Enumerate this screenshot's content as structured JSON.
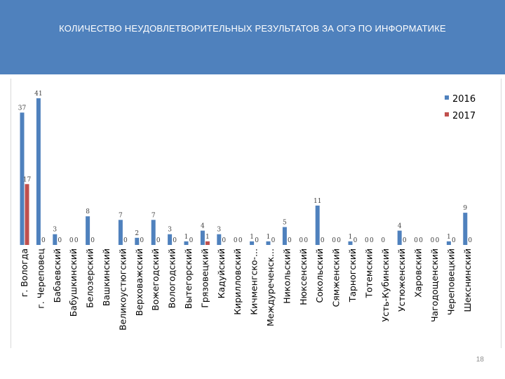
{
  "slide": {
    "title": "КОЛИЧЕСТВО  НЕУДОВЛЕТВОРИТЕЛЬНЫХ РЕЗУЛЬТАТОВ ЗА ОГЭ  ПО ИНФОРМАТИКЕ",
    "page_number": "18"
  },
  "colors": {
    "header": "#4f81bd",
    "series_2016": "#4f81bd",
    "series_2017": "#c0504d"
  },
  "chart_data": {
    "type": "bar",
    "title": "",
    "xlabel": "",
    "ylabel": "",
    "ylim": [
      0,
      41
    ],
    "grid": false,
    "legend_position": "top-right",
    "categories": [
      "г. Вологда",
      "г. Череповец",
      "Бабаевский",
      "Бабушкинский",
      "Белозерский",
      "Вашкинский",
      "Великоустюгский",
      "Верховажский",
      "Вожегодский",
      "Вологодский",
      "Вытегорский",
      "Грязовецкий",
      "Кадуйский",
      "Кирилловский",
      "Кичменгско-...",
      "Междуреченск...",
      "Никольский",
      "Нюксенский",
      "Сокольский",
      "Сямженский",
      "Тарногский",
      "Тотемский",
      "Усть-Кубинский",
      "Устюженский",
      "Харовский",
      "Чагодощенский",
      "Череповецкий",
      "Шекснинский"
    ],
    "series": [
      {
        "name": "2016",
        "values": [
          37,
          41,
          3,
          0,
          8,
          null,
          7,
          2,
          7,
          3,
          1,
          4,
          3,
          0,
          1,
          1,
          5,
          0,
          11,
          0,
          1,
          0,
          0,
          4,
          0,
          0,
          1,
          9
        ],
        "labels": [
          "37",
          "41",
          "3",
          "0",
          "8",
          "",
          "7",
          "2",
          "7",
          "3",
          "1",
          "4",
          "3",
          "0",
          "1",
          "1",
          "5",
          "0",
          "11",
          "0",
          "1",
          "0",
          "0",
          "4",
          "0",
          "0",
          "1",
          "9"
        ]
      },
      {
        "name": "2017",
        "values": [
          17,
          0,
          0,
          0,
          0,
          null,
          0,
          0,
          0,
          0,
          0,
          1,
          0,
          0,
          0,
          0,
          0,
          0,
          0,
          0,
          0,
          0,
          null,
          0,
          0,
          0,
          0,
          0
        ],
        "labels": [
          "17",
          "0",
          "0",
          "0",
          "0",
          "",
          "0",
          "0",
          "0",
          "0",
          "0",
          "1",
          "0",
          "0",
          "0",
          "0",
          "0",
          "0",
          "0",
          "0",
          "0",
          "0",
          "",
          "0",
          "0",
          "0",
          "0",
          "0"
        ]
      }
    ]
  }
}
